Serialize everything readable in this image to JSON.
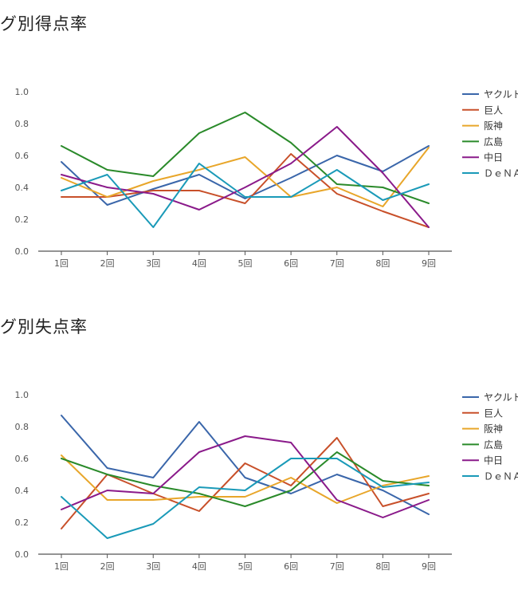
{
  "chart_data": [
    {
      "type": "line",
      "title": "グ別得点率",
      "xlabel": "",
      "ylabel": "",
      "categories": [
        "1回",
        "2回",
        "3回",
        "4回",
        "5回",
        "6回",
        "7回",
        "8回",
        "9回"
      ],
      "yticks": [
        "0.0",
        "0.2",
        "0.4",
        "0.6",
        "0.8",
        "1.0"
      ],
      "ylim": [
        0,
        1
      ],
      "grid": false,
      "legend": "right",
      "series": [
        {
          "name": "ヤクルト",
          "color": "#3a66aa",
          "values": [
            0.56,
            0.29,
            0.39,
            0.48,
            0.33,
            0.46,
            0.6,
            0.5,
            0.66
          ]
        },
        {
          "name": "巨人",
          "color": "#c8502a",
          "values": [
            0.34,
            0.34,
            0.38,
            0.38,
            0.3,
            0.61,
            0.36,
            0.25,
            0.15
          ]
        },
        {
          "name": "阪神",
          "color": "#e8a62a",
          "values": [
            0.46,
            0.34,
            0.44,
            0.51,
            0.59,
            0.34,
            0.4,
            0.28,
            0.65
          ]
        },
        {
          "name": "広島",
          "color": "#2a8a2a",
          "values": [
            0.66,
            0.51,
            0.47,
            0.74,
            0.87,
            0.68,
            0.42,
            0.4,
            0.3
          ]
        },
        {
          "name": "中日",
          "color": "#8a1a8a",
          "values": [
            0.48,
            0.4,
            0.36,
            0.26,
            0.4,
            0.55,
            0.78,
            0.49,
            0.15
          ]
        },
        {
          "name": "ＤｅＮＡ",
          "color": "#1a9ab8",
          "values": [
            0.38,
            0.48,
            0.15,
            0.55,
            0.34,
            0.34,
            0.51,
            0.32,
            0.42
          ]
        }
      ]
    },
    {
      "type": "line",
      "title": "グ別失点率",
      "xlabel": "",
      "ylabel": "",
      "categories": [
        "1回",
        "2回",
        "3回",
        "4回",
        "5回",
        "6回",
        "7回",
        "8回",
        "9回"
      ],
      "yticks": [
        "0.0",
        "0.2",
        "0.4",
        "0.6",
        "0.8",
        "1.0"
      ],
      "ylim": [
        0,
        1
      ],
      "grid": false,
      "legend": "right",
      "series": [
        {
          "name": "ヤクルト",
          "color": "#3a66aa",
          "values": [
            0.87,
            0.54,
            0.48,
            0.83,
            0.48,
            0.38,
            0.5,
            0.4,
            0.25
          ]
        },
        {
          "name": "巨人",
          "color": "#c8502a",
          "values": [
            0.16,
            0.5,
            0.38,
            0.27,
            0.57,
            0.43,
            0.73,
            0.3,
            0.38
          ]
        },
        {
          "name": "阪神",
          "color": "#e8a62a",
          "values": [
            0.62,
            0.34,
            0.34,
            0.36,
            0.36,
            0.48,
            0.32,
            0.43,
            0.49
          ]
        },
        {
          "name": "広島",
          "color": "#2a8a2a",
          "values": [
            0.6,
            0.5,
            0.43,
            0.38,
            0.3,
            0.4,
            0.64,
            0.46,
            0.43
          ]
        },
        {
          "name": "中日",
          "color": "#8a1a8a",
          "values": [
            0.28,
            0.4,
            0.38,
            0.64,
            0.74,
            0.7,
            0.34,
            0.23,
            0.34
          ]
        },
        {
          "name": "ＤｅＮＡ",
          "color": "#1a9ab8",
          "values": [
            0.36,
            0.1,
            0.19,
            0.42,
            0.4,
            0.6,
            0.6,
            0.42,
            0.45
          ]
        }
      ]
    }
  ]
}
